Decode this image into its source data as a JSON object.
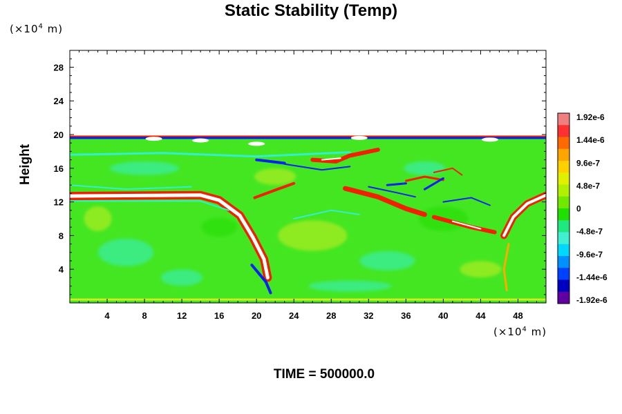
{
  "chart_data": {
    "type": "heatmap",
    "title": "Static Stability (Temp)",
    "ylabel": "Height",
    "xlabel": "",
    "x_unit_base": "(×10",
    "x_unit_exp": "4",
    "x_unit_tail": " m)",
    "y_unit_base": "(×10",
    "y_unit_exp": "4",
    "y_unit_tail": " m)",
    "xlim": [
      0,
      51
    ],
    "ylim": [
      0,
      30
    ],
    "x_ticks": [
      4,
      8,
      12,
      16,
      20,
      24,
      28,
      32,
      36,
      40,
      44,
      48
    ],
    "y_ticks": [
      4,
      8,
      12,
      16,
      20,
      24,
      28
    ],
    "x_tick_labels": [
      "4",
      "8",
      "12",
      "16",
      "20",
      "24",
      "28",
      "32",
      "36",
      "40",
      "44",
      "48"
    ],
    "y_tick_labels": [
      "4",
      "8",
      "12",
      "16",
      "20",
      "24",
      "28"
    ],
    "colorbar": {
      "labels": [
        "1.92e-6",
        "1.44e-6",
        "9.6e-7",
        "4.8e-7",
        "0",
        "-4.8e-7",
        "-9.6e-7",
        "-1.44e-6",
        "-1.92e-6"
      ],
      "colors": [
        "#f08080",
        "#ff3030",
        "#ff6a00",
        "#ffa500",
        "#ffd000",
        "#e0f000",
        "#b0f000",
        "#70e800",
        "#20e000",
        "#20e880",
        "#40f0d0",
        "#00d8ff",
        "#0090ff",
        "#0040ff",
        "#0000c0",
        "#6000a0"
      ]
    },
    "field_colors": {
      "background": "#44e622",
      "green": "#22dd00",
      "cyan": "#33f0cc",
      "yellow": "#ccee22",
      "red": "#ee2200",
      "white": "#ffffff",
      "blue": "#0022ee",
      "orange": "#ffaa00"
    }
  },
  "footer": {
    "time_text": "TIME = 500000.0"
  }
}
